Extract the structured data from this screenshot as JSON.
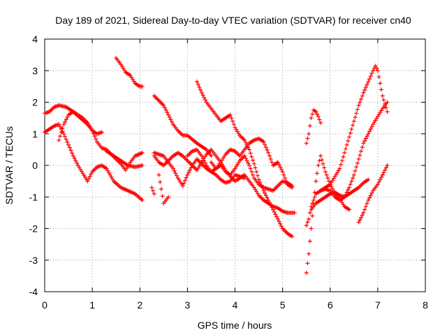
{
  "chart_data": {
    "type": "scatter",
    "title": "Day 189 of 2021, Sidereal Day-to-day VTEC variation (SDTVAR) for receiver cn40",
    "xlabel": "GPS time / hours",
    "ylabel": "SDTVAR / TECUs",
    "xlim": [
      0,
      8
    ],
    "ylim": [
      -4,
      4
    ],
    "xticks": [
      "0",
      "1",
      "2",
      "3",
      "4",
      "5",
      "6",
      "7",
      "8"
    ],
    "yticks": [
      "4",
      "3",
      "2",
      "1",
      "0",
      "-1",
      "-2",
      "-3",
      "-4"
    ],
    "grid": true,
    "marker": "+",
    "color": "#ff0000",
    "series": [
      {
        "x": [
          0.0,
          0.1,
          0.2,
          0.3,
          0.45,
          0.6,
          0.75,
          0.9,
          1.0,
          1.1,
          1.2
        ],
        "y": [
          1.65,
          1.7,
          1.85,
          1.9,
          1.85,
          1.7,
          1.5,
          1.3,
          1.1,
          1.0,
          1.05
        ]
      },
      {
        "x": [
          0.0,
          0.1,
          0.2,
          0.3,
          0.4,
          0.5,
          0.6,
          0.7,
          0.8,
          0.9,
          1.0,
          1.1,
          1.2,
          1.3,
          1.45,
          1.6,
          1.75,
          1.9,
          2.05
        ],
        "y": [
          1.05,
          1.15,
          1.25,
          1.3,
          1.0,
          0.65,
          0.3,
          0.0,
          -0.25,
          -0.5,
          -0.2,
          -0.05,
          0.0,
          -0.1,
          -0.5,
          -0.7,
          -0.8,
          -0.9,
          -1.1
        ]
      },
      {
        "x": [
          0.3,
          0.4,
          0.5,
          0.6,
          0.7,
          0.8,
          0.9,
          1.0,
          1.1,
          1.2,
          1.3,
          1.4,
          1.5,
          1.6,
          1.7,
          1.8,
          1.9,
          2.05
        ],
        "y": [
          0.8,
          1.3,
          1.6,
          1.7,
          1.6,
          1.5,
          1.35,
          1.1,
          0.75,
          0.55,
          0.5,
          0.35,
          0.2,
          0.05,
          -0.15,
          0.1,
          0.3,
          0.4
        ]
      },
      {
        "x": [
          1.3,
          1.45,
          1.6,
          1.75,
          1.9,
          2.05
        ],
        "y": [
          0.45,
          0.3,
          0.15,
          0.0,
          -0.05,
          0.0
        ]
      },
      {
        "x": [
          1.5,
          1.6,
          1.7,
          1.8,
          1.9,
          2.0,
          2.05
        ],
        "y": [
          3.4,
          3.2,
          2.95,
          2.85,
          2.6,
          2.5,
          2.5
        ]
      },
      {
        "x": [
          2.3,
          2.4,
          2.5,
          2.6,
          2.7,
          2.8,
          2.9,
          3.0,
          3.2,
          3.4,
          3.5
        ],
        "y": [
          2.2,
          2.05,
          1.9,
          1.6,
          1.3,
          1.1,
          0.95,
          0.95,
          0.7,
          0.5,
          0.3
        ]
      },
      {
        "x": [
          3.2,
          3.3,
          3.4,
          3.5,
          3.6,
          3.7,
          3.8,
          3.9,
          4.0,
          4.1,
          4.2,
          4.3,
          4.4,
          4.5,
          4.6,
          4.7,
          4.8,
          4.9,
          5.0,
          5.1,
          5.2
        ],
        "y": [
          2.65,
          2.3,
          2.0,
          1.8,
          1.6,
          1.4,
          1.5,
          1.6,
          1.2,
          0.95,
          0.8,
          0.5,
          0.05,
          -0.45,
          -0.8,
          -1.1,
          -1.4,
          -1.7,
          -2.0,
          -2.15,
          -2.25
        ]
      },
      {
        "x": [
          2.3,
          2.4,
          2.5,
          2.6,
          2.7,
          2.8,
          2.9,
          3.0,
          3.1,
          3.2,
          3.3,
          3.4,
          3.5,
          3.6,
          3.7,
          3.8,
          3.9,
          4.0,
          4.1,
          4.2,
          4.3,
          4.4,
          4.5,
          4.6,
          4.7,
          4.8,
          4.9,
          5.0,
          5.1,
          5.25
        ],
        "y": [
          0.3,
          0.1,
          0.0,
          0.15,
          0.3,
          0.4,
          0.3,
          0.15,
          0.0,
          -0.15,
          0.1,
          0.35,
          0.5,
          0.3,
          0.1,
          -0.15,
          -0.35,
          -0.5,
          -0.4,
          -0.3,
          -0.5,
          -0.7,
          -0.95,
          -1.1,
          -1.2,
          -1.3,
          -1.35,
          -1.45,
          -1.5,
          -1.5
        ]
      },
      {
        "x": [
          2.3,
          2.4,
          2.5,
          2.6,
          2.7,
          2.8,
          2.9,
          3.0,
          3.1,
          3.2,
          3.3,
          3.4,
          3.5,
          3.6,
          3.7,
          3.8,
          3.9,
          4.0,
          4.1,
          4.2
        ],
        "y": [
          0.4,
          0.35,
          0.3,
          0.1,
          -0.1,
          -0.4,
          -0.65,
          -0.3,
          0.0,
          0.2,
          0.05,
          -0.1,
          -0.2,
          -0.3,
          -0.45,
          -0.55,
          -0.5,
          -0.3,
          -0.35,
          -0.4
        ]
      },
      {
        "x": [
          3.0,
          3.1,
          3.2,
          3.3,
          3.4,
          3.5,
          3.6,
          3.7,
          3.8,
          3.9,
          4.0,
          4.1,
          4.2,
          4.3,
          4.4,
          4.5,
          4.6,
          4.7,
          4.8,
          4.9,
          5.0,
          5.1,
          5.2
        ],
        "y": [
          0.3,
          0.45,
          0.5,
          0.3,
          0.0,
          -0.2,
          -0.1,
          0.1,
          0.35,
          0.5,
          0.45,
          0.3,
          0.5,
          0.7,
          0.8,
          0.85,
          0.75,
          0.4,
          0.0,
          0.1,
          -0.2,
          -0.6,
          -0.7
        ]
      },
      {
        "x": [
          3.5,
          3.6,
          3.7,
          3.8,
          3.9,
          4.0,
          4.1,
          4.2,
          4.3,
          4.4,
          4.5,
          4.6,
          4.7,
          4.8,
          4.9,
          5.0,
          5.1,
          5.2
        ],
        "y": [
          0.1,
          -0.1,
          0.0,
          -0.2,
          -0.3,
          -0.1,
          0.15,
          0.3,
          0.0,
          -0.4,
          -0.6,
          -0.7,
          -0.75,
          -0.8,
          -0.65,
          -0.5,
          -0.55,
          -0.65
        ]
      },
      {
        "x": [
          2.4,
          2.5,
          2.6
        ],
        "y": [
          -0.3,
          -1.2,
          -1.0
        ]
      },
      {
        "x": [
          2.25,
          2.3
        ],
        "y": [
          -0.7,
          -0.9
        ]
      },
      {
        "x": [
          5.5,
          5.55,
          5.6,
          5.65,
          5.7,
          5.75,
          5.8
        ],
        "y": [
          0.7,
          1.0,
          1.5,
          1.75,
          1.7,
          1.55,
          1.35
        ]
      },
      {
        "x": [
          5.5,
          5.55,
          5.6,
          5.7,
          5.8,
          5.9,
          6.0,
          6.1,
          6.2,
          6.3,
          6.4,
          6.5,
          6.6,
          6.7,
          6.8,
          6.9,
          6.95,
          7.0,
          7.1,
          7.2
        ],
        "y": [
          -1.9,
          -1.7,
          -1.3,
          -0.9,
          -0.8,
          -0.7,
          -0.6,
          -0.35,
          -0.1,
          0.4,
          0.9,
          1.4,
          1.9,
          2.3,
          2.65,
          3.0,
          3.15,
          3.0,
          2.2,
          1.7
        ]
      },
      {
        "x": [
          5.5,
          5.55,
          5.6,
          5.65,
          5.7,
          5.75,
          5.8,
          5.9,
          6.0,
          6.1,
          6.2,
          6.3,
          6.4
        ],
        "y": [
          -3.4,
          -2.8,
          -2.0,
          -1.2,
          -0.5,
          0.0,
          0.3,
          -0.2,
          -0.6,
          -0.9,
          -1.05,
          -1.3,
          -1.4
        ]
      },
      {
        "x": [
          5.6,
          5.7,
          5.8,
          5.9,
          6.0,
          6.1,
          6.2,
          6.3,
          6.4,
          6.5,
          6.6,
          6.7,
          6.8,
          6.9,
          7.0,
          7.1,
          7.2
        ],
        "y": [
          -1.4,
          -1.2,
          -1.1,
          -1.0,
          -0.9,
          -0.85,
          -0.95,
          -1.0,
          -0.7,
          -0.3,
          0.2,
          0.7,
          1.0,
          1.3,
          1.55,
          1.8,
          2.0
        ]
      },
      {
        "x": [
          5.8,
          5.9,
          6.0,
          6.1,
          6.2,
          6.3,
          6.4,
          6.5,
          6.6,
          6.7,
          6.8
        ],
        "y": [
          -0.8,
          -0.75,
          -0.8,
          -1.0,
          -1.1,
          -1.0,
          -0.9,
          -0.8,
          -0.7,
          -0.55,
          -0.45
        ]
      },
      {
        "x": [
          6.6,
          6.7,
          6.8,
          6.9,
          7.0,
          7.1,
          7.2
        ],
        "y": [
          -1.8,
          -1.5,
          -1.1,
          -0.8,
          -0.6,
          -0.3,
          0.0
        ]
      }
    ]
  }
}
